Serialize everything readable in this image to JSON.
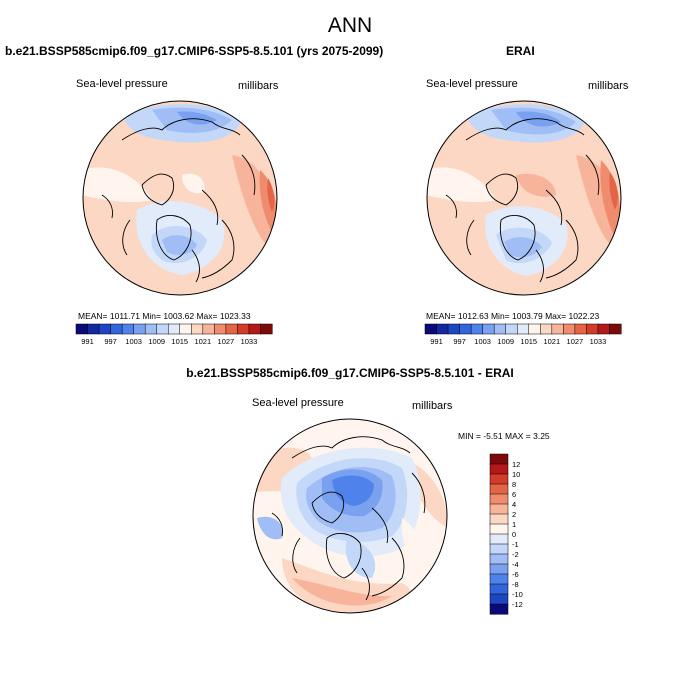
{
  "title": "ANN",
  "panels": {
    "left_title": "b.e21.BSSP585cmip6.f09_g17.CMIP6-SSP5-8.5.101 (yrs 2075-2099)",
    "right_title": "ERAI",
    "diff_title": "b.e21.BSSP585cmip6.f09_g17.CMIP6-SSP5-8.5.101 - ERAI"
  },
  "labels": {
    "variable": "Sea-level pressure",
    "units": "millibars"
  },
  "stats": {
    "left": "MEAN= 1011.71  Min= 1003.62  Max= 1023.33",
    "right": "MEAN= 1012.63  Min= 1003.79  Max= 1022.23",
    "diff": "MIN =  -5.51 MAX =   3.25"
  },
  "colors": {
    "coast": "#000000",
    "outline": "#000000"
  },
  "chart_data": [
    {
      "type": "heatmap",
      "name": "model-slp",
      "projection": "north-polar-stereographic",
      "title": "b.e21.BSSP585cmip6.f09_g17.CMIP6-SSP5-8.5.101 (yrs 2075-2099)",
      "variable": "Sea-level pressure",
      "units": "millibars",
      "stats": {
        "mean": 1011.71,
        "min": 1003.62,
        "max": 1023.33
      },
      "colorbar": {
        "orientation": "horizontal",
        "tick_labels": [
          "991",
          "997",
          "1003",
          "1009",
          "1015",
          "1021",
          "1027",
          "1033"
        ],
        "colors": [
          "#0a0a78",
          "#1428a0",
          "#1e46c3",
          "#3264dc",
          "#5082eb",
          "#7aa0f0",
          "#a0bef5",
          "#c3d7f8",
          "#e1ebfa",
          "#fff5ee",
          "#fcd7c3",
          "#f8b49b",
          "#f08c6e",
          "#e66446",
          "#d23c28",
          "#b4191a",
          "#7d0a0a"
        ]
      }
    },
    {
      "type": "heatmap",
      "name": "erai-slp",
      "projection": "north-polar-stereographic",
      "title": "ERAI",
      "variable": "Sea-level pressure",
      "units": "millibars",
      "stats": {
        "mean": 1012.63,
        "min": 1003.79,
        "max": 1022.23
      },
      "colorbar": {
        "orientation": "horizontal",
        "tick_labels": [
          "991",
          "997",
          "1003",
          "1009",
          "1015",
          "1021",
          "1027",
          "1033"
        ],
        "colors": [
          "#0a0a78",
          "#1428a0",
          "#1e46c3",
          "#3264dc",
          "#5082eb",
          "#7aa0f0",
          "#a0bef5",
          "#c3d7f8",
          "#e1ebfa",
          "#fff5ee",
          "#fcd7c3",
          "#f8b49b",
          "#f08c6e",
          "#e66446",
          "#d23c28",
          "#b4191a",
          "#7d0a0a"
        ]
      }
    },
    {
      "type": "heatmap",
      "name": "difference-slp",
      "projection": "north-polar-stereographic",
      "title": "b.e21.BSSP585cmip6.f09_g17.CMIP6-SSP5-8.5.101 - ERAI",
      "variable": "Sea-level pressure",
      "units": "millibars",
      "stats": {
        "min": -5.51,
        "max": 3.25
      },
      "colorbar": {
        "orientation": "vertical",
        "tick_labels": [
          "12",
          "10",
          "8",
          "6",
          "4",
          "2",
          "1",
          "0",
          "-1",
          "-2",
          "-4",
          "-6",
          "-8",
          "-10",
          "-12"
        ],
        "colors": [
          "#7d0a0a",
          "#b4191a",
          "#d23c28",
          "#e66446",
          "#f08c6e",
          "#f8b49b",
          "#fcd7c3",
          "#fff5ee",
          "#e1ebfa",
          "#c3d7f8",
          "#a0bef5",
          "#7aa0f0",
          "#5082eb",
          "#3264dc",
          "#1e46c3",
          "#0a0a78"
        ]
      }
    }
  ]
}
